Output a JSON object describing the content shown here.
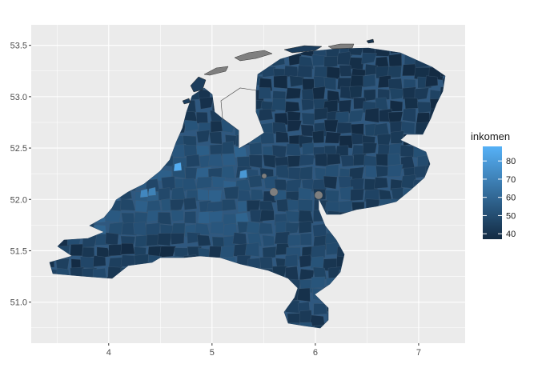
{
  "chart_data": {
    "type": "choropleth",
    "region": "Netherlands municipalities",
    "fill_variable": "inkomen",
    "x_ticks": [
      4,
      5,
      6,
      7
    ],
    "y_ticks": [
      51.0,
      51.5,
      52.0,
      52.5,
      53.0,
      53.5
    ],
    "x_tick_labels": [
      "4",
      "5",
      "6",
      "7"
    ],
    "y_tick_labels": [
      "51.0",
      "51.5",
      "52.0",
      "52.5",
      "53.0",
      "53.5"
    ],
    "xlim": [
      3.25,
      7.45
    ],
    "ylim": [
      50.6,
      53.7
    ],
    "grid": true,
    "legend": {
      "title": "inkomen",
      "position": "right",
      "breaks": [
        40,
        50,
        60,
        70,
        80
      ],
      "labels": [
        "40",
        "50",
        "60",
        "70",
        "80"
      ],
      "range": [
        37,
        88
      ],
      "low_color": "#132b43",
      "high_color": "#56b1f7",
      "na_color": "#7f7f7f"
    }
  }
}
